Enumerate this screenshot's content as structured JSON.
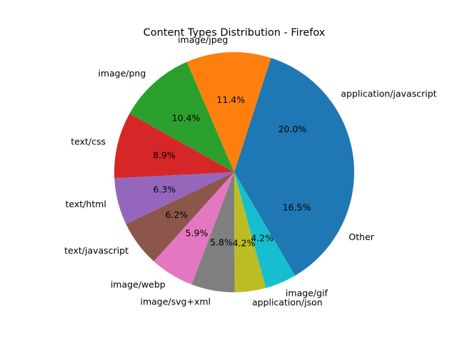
{
  "chart_data": {
    "type": "pie",
    "title": "Content Types Distribution - Firefox",
    "start_angle_deg": 0,
    "direction": "counterclockwise",
    "slices": [
      {
        "label": "application/javascript",
        "value": 20.0,
        "pct_label": "20.0%",
        "color": "#1f77b4"
      },
      {
        "label": "image/jpeg",
        "value": 11.4,
        "pct_label": "11.4%",
        "color": "#ff7f0e"
      },
      {
        "label": "image/png",
        "value": 10.4,
        "pct_label": "10.4%",
        "color": "#2ca02c"
      },
      {
        "label": "text/css",
        "value": 8.9,
        "pct_label": "8.9%",
        "color": "#d62728"
      },
      {
        "label": "text/html",
        "value": 6.3,
        "pct_label": "6.3%",
        "color": "#9467bd"
      },
      {
        "label": "text/javascript",
        "value": 6.2,
        "pct_label": "6.2%",
        "color": "#8c564b"
      },
      {
        "label": "image/webp",
        "value": 5.9,
        "pct_label": "5.9%",
        "color": "#e377c2"
      },
      {
        "label": "image/svg+xml",
        "value": 5.8,
        "pct_label": "5.8%",
        "color": "#7f7f7f"
      },
      {
        "label": "application/json",
        "value": 4.2,
        "pct_label": "4.2%",
        "color": "#bcbd22"
      },
      {
        "label": "image/gif",
        "value": 4.2,
        "pct_label": "4.2%",
        "color": "#17becf"
      },
      {
        "label": "Other",
        "value": 16.5,
        "pct_label": "16.5%",
        "color": "#1f77b4"
      }
    ]
  }
}
